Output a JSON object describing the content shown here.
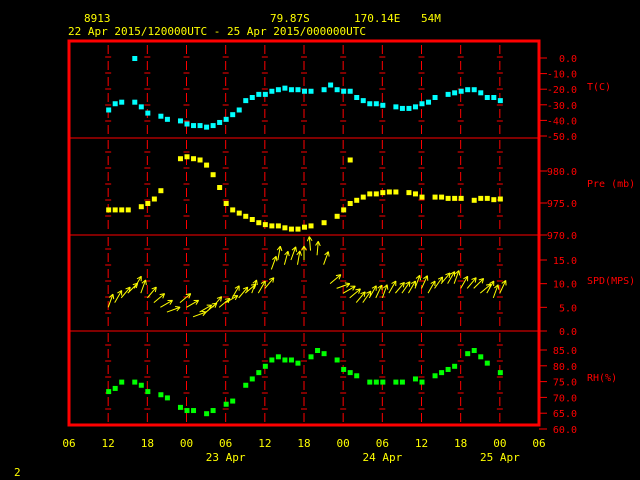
{
  "header": {
    "station_id": "8913",
    "latitude": "79.87S",
    "longitude": "170.14E",
    "elevation": "54M",
    "period": "22 Apr 2015/120000UTC - 25 Apr 2015/000000UTC"
  },
  "footer": {
    "page_number": "2"
  },
  "colors": {
    "frame": "#ff0000",
    "ticks": "#ffff00",
    "temp": "#00ffff",
    "pressure": "#ffff00",
    "wind": "#ffff00",
    "rh": "#00ff00"
  },
  "x_axis": {
    "tick_labels": [
      "06",
      "12",
      "18",
      "00",
      "06",
      "12",
      "18",
      "00",
      "06",
      "12",
      "18",
      "00",
      "06"
    ],
    "date_labels": [
      "23 Apr",
      "24 Apr",
      "25 Apr"
    ],
    "range_hours": [
      -6,
      66
    ]
  },
  "chart_data": [
    {
      "type": "scatter",
      "panel": "temperature",
      "label": "T(C)",
      "ylim": [
        -50,
        0
      ],
      "y_ticks": [
        "0.0",
        "-10.0",
        "-20.0",
        "-30.0",
        "-40.0",
        "-50.0"
      ],
      "tick_values": [
        0,
        -10,
        -20,
        -30,
        -40,
        -50
      ],
      "x": [
        0,
        1,
        2,
        4,
        5,
        6,
        8,
        9,
        11,
        12,
        13,
        14,
        15,
        16,
        17,
        18,
        19,
        20,
        21,
        22,
        23,
        24,
        25,
        26,
        27,
        28,
        29,
        30,
        31,
        33,
        34,
        35,
        36,
        37,
        38,
        39,
        40,
        41,
        42,
        44,
        45,
        46,
        47,
        48,
        49,
        50,
        52,
        53,
        54,
        55,
        56,
        57,
        58,
        59,
        60
      ],
      "y": [
        -33,
        -29,
        -28,
        -28,
        -31,
        -35,
        -37,
        -39,
        -40,
        -42,
        -43,
        -43,
        -44,
        -43,
        -41,
        -39,
        -36,
        -33,
        -27,
        -25,
        -23,
        -23,
        -21,
        -20,
        -19,
        -20,
        -20,
        -21,
        -21,
        -20,
        -17,
        -20,
        -21,
        -21,
        -25,
        -27,
        -29,
        -29,
        -30,
        -31,
        -32,
        -32,
        -31,
        -29,
        -28,
        -25,
        -23,
        -22,
        -21,
        -20,
        -20,
        -22,
        -25,
        -25,
        -27
      ],
      "extra_points": [
        {
          "x": 4,
          "y": 0
        }
      ]
    },
    {
      "type": "scatter",
      "panel": "pressure",
      "label": "Pre (mb)",
      "ylim": [
        970,
        983
      ],
      "y_ticks": [
        "980.0",
        "975.0",
        "970.0"
      ],
      "tick_values": [
        980,
        975,
        970
      ],
      "x": [
        0,
        1,
        2,
        3,
        5,
        6,
        7,
        8,
        11,
        12,
        13,
        14,
        15,
        16,
        17,
        18,
        19,
        20,
        21,
        22,
        23,
        24,
        25,
        26,
        27,
        28,
        29,
        30,
        31,
        33,
        35,
        36,
        37,
        38,
        39,
        40,
        41,
        42,
        43,
        44,
        46,
        47,
        48,
        50,
        51,
        52,
        53,
        54,
        56,
        57,
        58,
        59,
        60
      ],
      "y": [
        974,
        974,
        974,
        974,
        974.5,
        975,
        975.7,
        977,
        982,
        982.3,
        982,
        981.8,
        981,
        979.5,
        977.5,
        975,
        974,
        973.5,
        973,
        972.5,
        972,
        971.7,
        971.5,
        971.5,
        971.2,
        971,
        971,
        971.3,
        971.5,
        972,
        973,
        974,
        975,
        975.5,
        976,
        976.5,
        976.5,
        976.7,
        976.8,
        976.8,
        976.7,
        976.5,
        976,
        976,
        976,
        975.8,
        975.8,
        975.8,
        975.5,
        975.8,
        975.8,
        975.6,
        975.7
      ],
      "extra_points": [
        {
          "x": 37,
          "y": 981.8
        }
      ]
    },
    {
      "type": "vector",
      "panel": "wind",
      "label": "SPD(MPS)",
      "ylim": [
        0,
        18
      ],
      "y_ticks": [
        "15.0",
        "10.0",
        "5.0",
        "0.0"
      ],
      "tick_values": [
        15,
        10,
        5,
        0
      ],
      "x": [
        0,
        1,
        2,
        3,
        4,
        5,
        6,
        7,
        8,
        9,
        11,
        12,
        13,
        14,
        15,
        16,
        17,
        18,
        19,
        20,
        21,
        22,
        23,
        24,
        25,
        26,
        27,
        28,
        29,
        30,
        31,
        32,
        33,
        34,
        35,
        36,
        37,
        38,
        39,
        40,
        41,
        42,
        43,
        44,
        45,
        46,
        47,
        48,
        49,
        50,
        51,
        52,
        53,
        54,
        55,
        56,
        57,
        58,
        59,
        60
      ],
      "speed": [
        5,
        6,
        7,
        8,
        9,
        8,
        7,
        6,
        5,
        4,
        6,
        5,
        3,
        4,
        4,
        5,
        5,
        6,
        7,
        7,
        8,
        8,
        8,
        9,
        13,
        15,
        14,
        15,
        14,
        15,
        17,
        16,
        14,
        10,
        9,
        8,
        7,
        6,
        6,
        7,
        7,
        7,
        8,
        8,
        8,
        8,
        9,
        9,
        8,
        9,
        10,
        10,
        10,
        9,
        9,
        9,
        8,
        8,
        7,
        8
      ],
      "direction_deg": [
        200,
        210,
        220,
        225,
        210,
        200,
        220,
        230,
        240,
        250,
        230,
        240,
        250,
        240,
        230,
        220,
        230,
        240,
        210,
        220,
        230,
        200,
        210,
        220,
        200,
        190,
        195,
        200,
        190,
        180,
        175,
        185,
        200,
        230,
        250,
        240,
        230,
        220,
        215,
        210,
        205,
        200,
        210,
        220,
        215,
        210,
        200,
        205,
        210,
        215,
        220,
        210,
        200,
        210,
        220,
        225,
        230,
        210,
        200,
        205
      ]
    },
    {
      "type": "scatter",
      "panel": "relative_humidity",
      "label": "RH(%)",
      "ylim": [
        60,
        88
      ],
      "y_ticks": [
        "85.0",
        "80.0",
        "75.0",
        "70.0",
        "65.0",
        "60.0"
      ],
      "tick_values": [
        85,
        80,
        75,
        70,
        65,
        60
      ],
      "x": [
        0,
        1,
        2,
        4,
        5,
        6,
        8,
        9,
        11,
        12,
        13,
        15,
        16,
        18,
        19,
        21,
        22,
        23,
        24,
        25,
        26,
        27,
        28,
        29,
        31,
        32,
        33,
        35,
        36,
        37,
        38,
        40,
        41,
        42,
        44,
        45,
        47,
        48,
        50,
        51,
        52,
        53,
        55,
        56,
        57,
        58,
        60
      ],
      "y": [
        72,
        73,
        75,
        75,
        74,
        72,
        71,
        70,
        67,
        66,
        66,
        65,
        66,
        68,
        69,
        74,
        76,
        78,
        80,
        82,
        83,
        82,
        82,
        81,
        83,
        85,
        84,
        82,
        79,
        78,
        77,
        75,
        75,
        75,
        75,
        75,
        76,
        75,
        77,
        78,
        79,
        80,
        84,
        85,
        83,
        81,
        78
      ]
    }
  ]
}
